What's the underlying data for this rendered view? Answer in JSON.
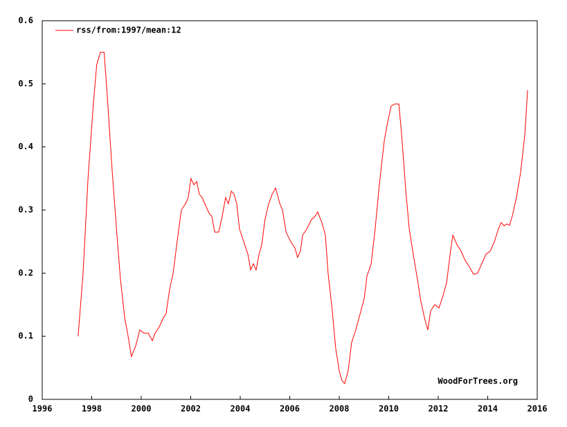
{
  "chart_data": {
    "type": "line",
    "annotation": "WoodForTrees.org",
    "x": [
      1997.45,
      1997.65,
      1997.85,
      1998.05,
      1998.2,
      1998.35,
      1998.5,
      1998.63,
      1998.83,
      1999.0,
      1999.16,
      1999.33,
      1999.47,
      1999.6,
      1999.78,
      1999.94,
      2000.11,
      2000.28,
      2000.45,
      2000.56,
      2000.73,
      2000.9,
      2001.0,
      2001.15,
      2001.29,
      2001.45,
      2001.62,
      2001.79,
      2001.9,
      2002.01,
      2002.13,
      2002.24,
      2002.35,
      2002.46,
      2002.57,
      2002.74,
      2002.85,
      2002.97,
      2003.13,
      2003.27,
      2003.41,
      2003.52,
      2003.64,
      2003.75,
      2003.86,
      2003.97,
      2004.14,
      2004.31,
      2004.42,
      2004.53,
      2004.64,
      2004.76,
      2004.87,
      2005.0,
      2005.15,
      2005.29,
      2005.43,
      2005.6,
      2005.71,
      2005.85,
      2006.04,
      2006.21,
      2006.32,
      2006.43,
      2006.52,
      2006.69,
      2006.88,
      2007.02,
      2007.13,
      2007.3,
      2007.44,
      2007.55,
      2007.72,
      2007.86,
      2008.0,
      2008.11,
      2008.22,
      2008.36,
      2008.5,
      2008.67,
      2008.84,
      2009.01,
      2009.12,
      2009.29,
      2009.45,
      2009.62,
      2009.82,
      2009.96,
      2010.1,
      2010.24,
      2010.41,
      2010.52,
      2010.69,
      2010.83,
      2010.99,
      2011.16,
      2011.3,
      2011.47,
      2011.58,
      2011.69,
      2011.86,
      2012.03,
      2012.2,
      2012.34,
      2012.48,
      2012.59,
      2012.76,
      2012.92,
      2013.09,
      2013.26,
      2013.43,
      2013.59,
      2013.76,
      2013.93,
      2014.1,
      2014.27,
      2014.43,
      2014.54,
      2014.66,
      2014.77,
      2014.88,
      2014.99,
      2015.16,
      2015.33,
      2015.5,
      2015.61
    ],
    "series": [
      {
        "name": "rss/from:1997/mean:12",
        "color": "#ff0000",
        "values": [
          0.1,
          0.2,
          0.35,
          0.46,
          0.53,
          0.55,
          0.55,
          0.48,
          0.36,
          0.27,
          0.19,
          0.13,
          0.1,
          0.068,
          0.085,
          0.11,
          0.105,
          0.105,
          0.093,
          0.105,
          0.115,
          0.13,
          0.135,
          0.175,
          0.2,
          0.25,
          0.3,
          0.31,
          0.32,
          0.35,
          0.34,
          0.345,
          0.325,
          0.32,
          0.31,
          0.295,
          0.29,
          0.265,
          0.265,
          0.29,
          0.32,
          0.31,
          0.33,
          0.325,
          0.31,
          0.27,
          0.25,
          0.23,
          0.205,
          0.215,
          0.205,
          0.23,
          0.245,
          0.285,
          0.31,
          0.325,
          0.335,
          0.31,
          0.3,
          0.265,
          0.25,
          0.24,
          0.225,
          0.235,
          0.26,
          0.27,
          0.285,
          0.29,
          0.297,
          0.28,
          0.26,
          0.2,
          0.14,
          0.08,
          0.045,
          0.03,
          0.025,
          0.045,
          0.09,
          0.11,
          0.135,
          0.16,
          0.195,
          0.215,
          0.27,
          0.34,
          0.41,
          0.44,
          0.465,
          0.468,
          0.468,
          0.42,
          0.33,
          0.27,
          0.23,
          0.19,
          0.155,
          0.125,
          0.11,
          0.14,
          0.15,
          0.145,
          0.165,
          0.185,
          0.23,
          0.26,
          0.245,
          0.235,
          0.22,
          0.21,
          0.198,
          0.2,
          0.215,
          0.23,
          0.235,
          0.25,
          0.27,
          0.28,
          0.275,
          0.278,
          0.276,
          0.29,
          0.32,
          0.36,
          0.42,
          0.49
        ]
      }
    ],
    "xlim": [
      1996,
      2016
    ],
    "xticks": [
      1996,
      1998,
      2000,
      2002,
      2004,
      2006,
      2008,
      2010,
      2012,
      2014,
      2016
    ],
    "ylim": [
      0,
      0.6
    ],
    "yticks": [
      0,
      0.1,
      0.2,
      0.3,
      0.4,
      0.5,
      0.6
    ],
    "legend": "top-left"
  }
}
